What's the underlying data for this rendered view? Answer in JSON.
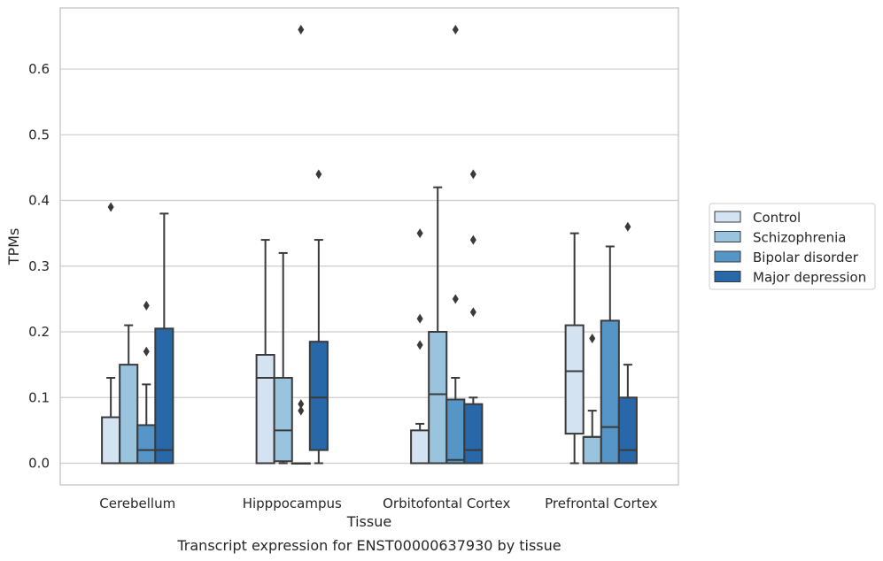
{
  "chart_data": {
    "type": "boxplot",
    "title": "",
    "caption": "Transcript expression for ENST00000637930 by tissue",
    "xlabel": "Tissue",
    "ylabel": "TPMs",
    "ylim": [
      -0.033,
      0.693
    ],
    "yticks": [
      0.0,
      0.1,
      0.2,
      0.3,
      0.4,
      0.5,
      0.6
    ],
    "ytick_labels": [
      "0.0",
      "0.1",
      "0.2",
      "0.3",
      "0.4",
      "0.5",
      "0.6"
    ],
    "grid": "horizontal",
    "legend_position": "right",
    "categories": [
      "Cerebellum",
      "Hipppocampus",
      "Orbitofontal Cortex",
      "Prefrontal Cortex"
    ],
    "series": [
      {
        "name": "Control",
        "color": "#d4e3f2",
        "boxes": [
          {
            "whislo": 0.0,
            "q1": 0.0,
            "med": 0.0,
            "q3": 0.07,
            "whishi": 0.13,
            "fliers": [
              0.39
            ]
          },
          {
            "whislo": 0.0,
            "q1": 0.0,
            "med": 0.13,
            "q3": 0.165,
            "whishi": 0.34,
            "fliers": []
          },
          {
            "whislo": 0.0,
            "q1": 0.0,
            "med": 0.0,
            "q3": 0.05,
            "whishi": 0.06,
            "fliers": [
              0.18,
              0.22,
              0.35
            ]
          },
          {
            "whislo": 0.0,
            "q1": 0.045,
            "med": 0.14,
            "q3": 0.21,
            "whishi": 0.35,
            "fliers": []
          }
        ]
      },
      {
        "name": "Schizophrenia",
        "color": "#9ac4de",
        "boxes": [
          {
            "whislo": 0.0,
            "q1": 0.0,
            "med": 0.0,
            "q3": 0.15,
            "whishi": 0.21,
            "fliers": []
          },
          {
            "whislo": 0.0,
            "q1": 0.003,
            "med": 0.05,
            "q3": 0.13,
            "whishi": 0.32,
            "fliers": []
          },
          {
            "whislo": 0.0,
            "q1": 0.0,
            "med": 0.105,
            "q3": 0.2,
            "whishi": 0.42,
            "fliers": []
          },
          {
            "whislo": 0.0,
            "q1": 0.0,
            "med": 0.04,
            "q3": 0.04,
            "whishi": 0.08,
            "fliers": [
              0.19
            ]
          }
        ]
      },
      {
        "name": "Bipolar disorder",
        "color": "#5596c7",
        "boxes": [
          {
            "whislo": 0.0,
            "q1": 0.0,
            "med": 0.02,
            "q3": 0.058,
            "whishi": 0.12,
            "fliers": [
              0.17,
              0.24
            ]
          },
          {
            "whislo": 0.0,
            "q1": 0.0,
            "med": 0.0,
            "q3": 0.0,
            "whishi": 0.0,
            "fliers": [
              0.08,
              0.09,
              0.66
            ]
          },
          {
            "whislo": 0.0,
            "q1": 0.0,
            "med": 0.005,
            "q3": 0.097,
            "whishi": 0.13,
            "fliers": [
              0.25,
              0.66
            ]
          },
          {
            "whislo": 0.0,
            "q1": 0.0,
            "med": 0.055,
            "q3": 0.217,
            "whishi": 0.33,
            "fliers": []
          }
        ]
      },
      {
        "name": "Major depression",
        "color": "#2868a8",
        "boxes": [
          {
            "whislo": 0.0,
            "q1": 0.0,
            "med": 0.02,
            "q3": 0.205,
            "whishi": 0.38,
            "fliers": []
          },
          {
            "whislo": 0.0,
            "q1": 0.02,
            "med": 0.1,
            "q3": 0.185,
            "whishi": 0.34,
            "fliers": [
              0.44
            ]
          },
          {
            "whislo": 0.0,
            "q1": 0.0,
            "med": 0.02,
            "q3": 0.09,
            "whishi": 0.1,
            "fliers": [
              0.23,
              0.34,
              0.44
            ]
          },
          {
            "whislo": 0.0,
            "q1": 0.0,
            "med": 0.02,
            "q3": 0.1,
            "whishi": 0.15,
            "fliers": [
              0.36
            ]
          }
        ]
      }
    ]
  }
}
